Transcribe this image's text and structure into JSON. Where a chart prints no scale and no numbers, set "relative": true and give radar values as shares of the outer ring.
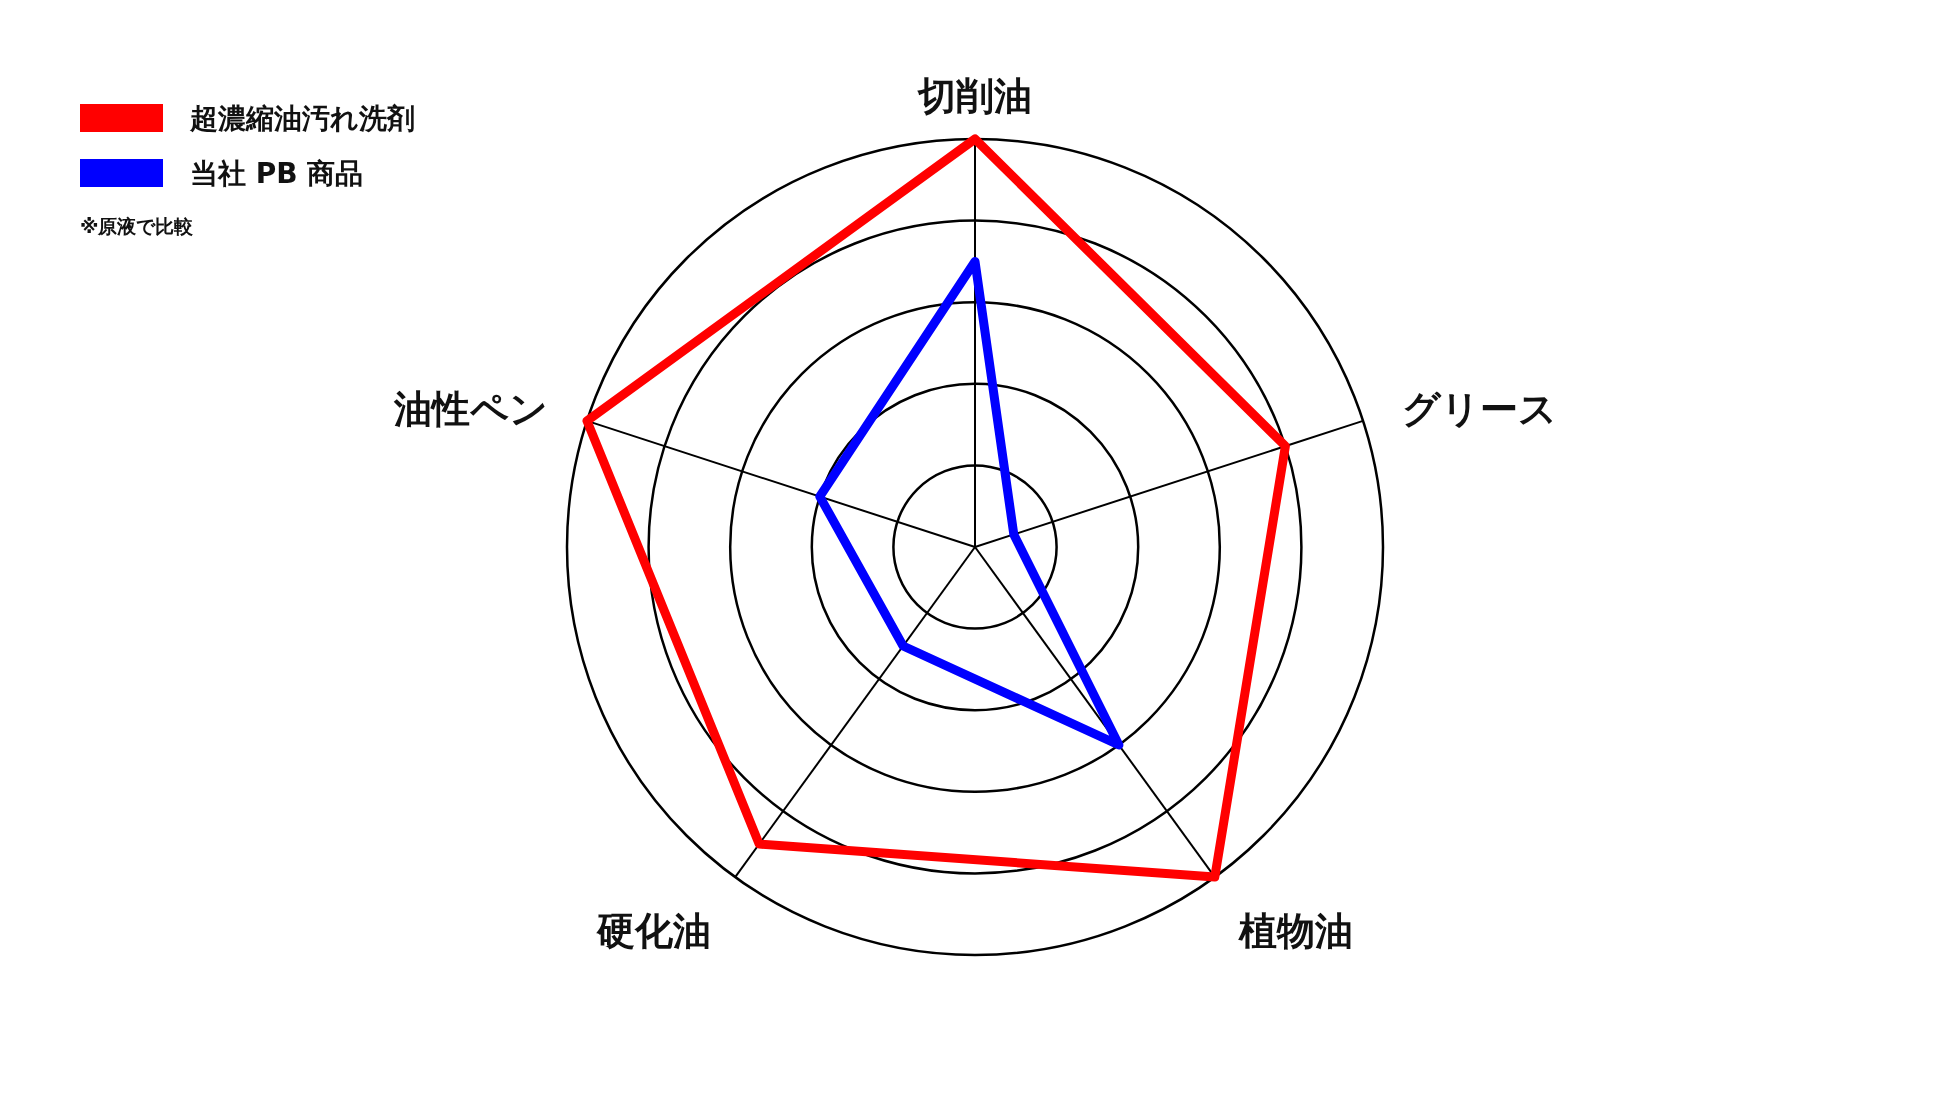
{
  "chart_data": {
    "type": "radar",
    "relative": true,
    "grid": true,
    "legend": "top left",
    "categories": [
      "切削油",
      "グリース",
      "植物油",
      "硬化油",
      "油性ペン"
    ],
    "series": [
      {
        "name": "超濃縮油汚れ洗剤",
        "color": "#ff0000",
        "values": [
          1,
          0.8,
          1,
          0.9,
          1
        ]
      },
      {
        "name": "当社 PB 商品",
        "color": "#0000ff",
        "values": [
          0.7,
          0.1,
          0.6,
          0.3,
          0.4
        ]
      }
    ],
    "annotations": [
      "※原液で比較"
    ]
  }
}
